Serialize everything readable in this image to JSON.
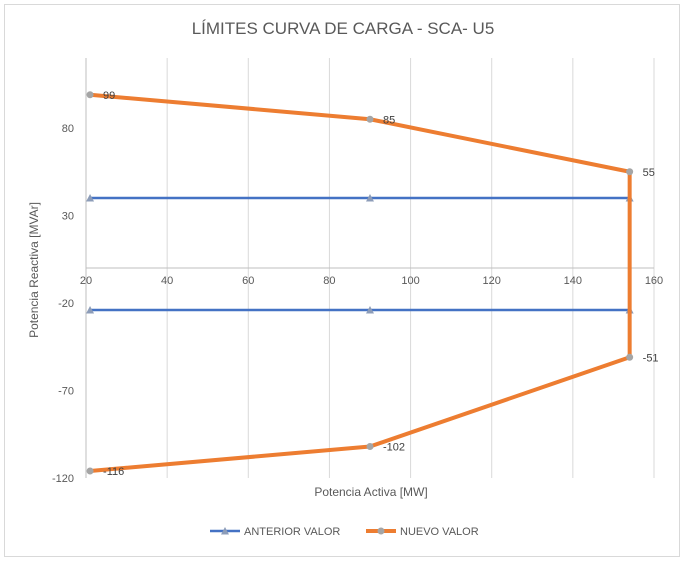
{
  "chart_data": {
    "type": "scatter",
    "title": "LÍMITES CURVA DE CARGA - SCA- U5",
    "xlabel": "Potencia Activa [MW]",
    "ylabel": "Potencia Reactiva [MVAr]",
    "xlim": [
      20,
      160
    ],
    "ylim": [
      -120,
      120
    ],
    "x_ticks": [
      "20",
      "40",
      "60",
      "80",
      "100",
      "120",
      "140",
      "160"
    ],
    "y_ticks": [
      "-120",
      "-70",
      "-20",
      "30",
      "80"
    ],
    "grid": "vertical",
    "legend_position": "bottom",
    "series": [
      {
        "name": "ANTERIOR VALOR",
        "color": "#4472c4",
        "segments": [
          [
            [
              21,
              40
            ],
            [
              90,
              40
            ],
            [
              154,
              40
            ]
          ],
          [
            [
              21,
              -24
            ],
            [
              90,
              -24
            ],
            [
              154,
              -24
            ]
          ]
        ]
      },
      {
        "name": "NUEVO VALOR",
        "color": "#ed7d31",
        "points": [
          {
            "x": 21,
            "y": 99,
            "label": "99"
          },
          {
            "x": 90,
            "y": 85,
            "label": "85"
          },
          {
            "x": 154,
            "y": 55,
            "label": "55"
          },
          {
            "x": 154,
            "y": -51,
            "label": "-51"
          },
          {
            "x": 90,
            "y": -102,
            "label": "-102"
          },
          {
            "x": 21,
            "y": -116,
            "label": "-116"
          }
        ]
      }
    ]
  }
}
